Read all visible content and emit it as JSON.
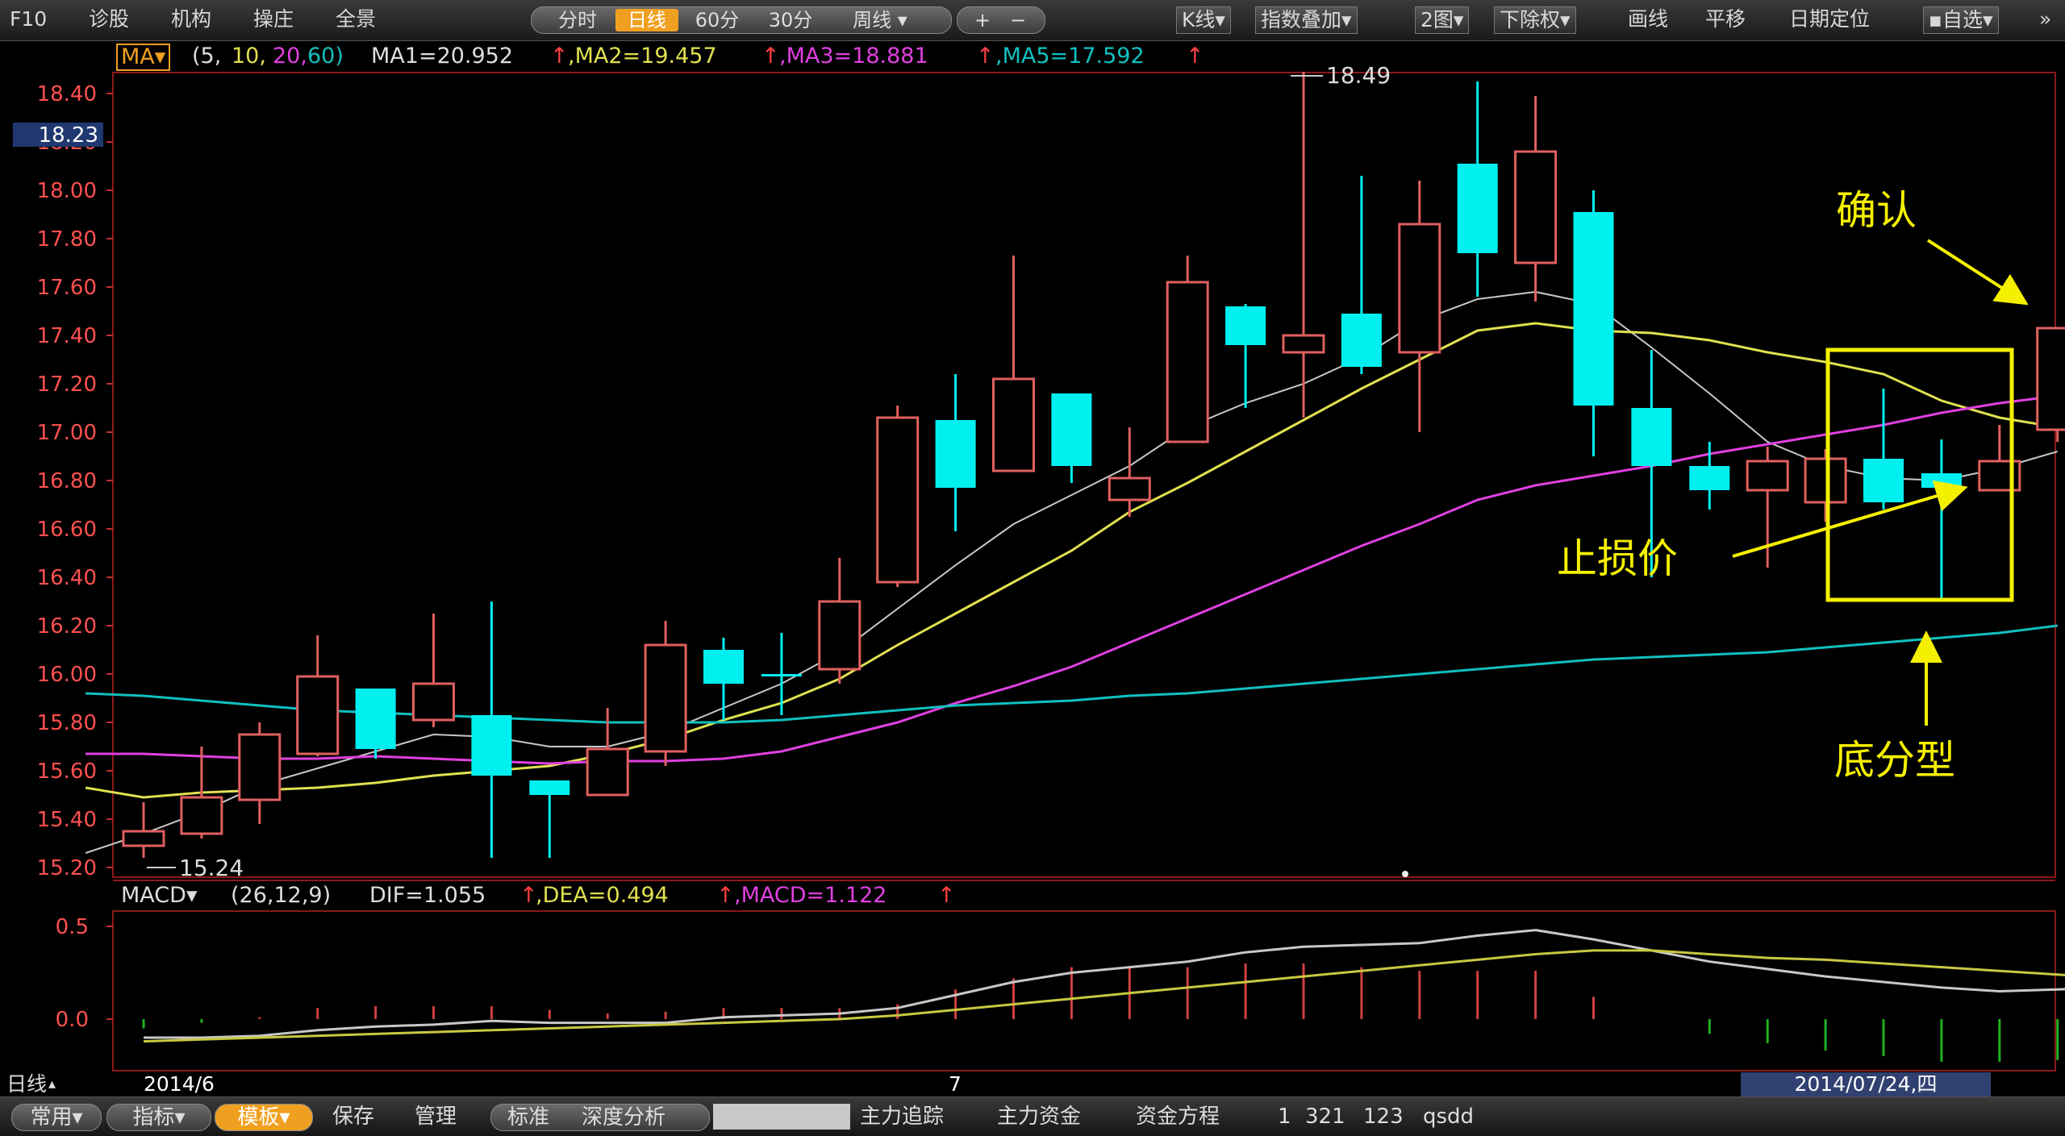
{
  "toolbar": {
    "f10": "F10",
    "items": [
      "诊股",
      "机构",
      "操庄",
      "全景"
    ],
    "periods": [
      "分时",
      "日线",
      "60分",
      "30分",
      "周线"
    ],
    "active_period": "日线",
    "zoom_in": "+",
    "zoom_out": "−",
    "right_items": [
      "K线",
      "指数叠加",
      "2图",
      "下除权",
      "画线",
      "平移",
      "日期定位",
      "自选"
    ],
    "more": "»"
  },
  "ma_indicator": {
    "name": "MA",
    "params_prefix": "(5,",
    "param1": "10,",
    "param2": "20,",
    "param3": "60)",
    "ma1": "MA1=20.952",
    "ma2": ",MA2=19.457",
    "ma3": ",MA3=18.881",
    "ma5": ",MA5=17.592",
    "arrow": "↑"
  },
  "price_axis": {
    "ticks": [
      "18.40",
      "18.20",
      "18.00",
      "17.80",
      "17.60",
      "17.40",
      "17.20",
      "17.00",
      "16.80",
      "16.60",
      "16.40",
      "16.20",
      "16.00",
      "15.80",
      "15.60",
      "15.40",
      "15.20"
    ],
    "current_price": "18.23"
  },
  "chart_data": {
    "type": "candlestick",
    "ylim": [
      15.2,
      18.5
    ],
    "candles": [
      {
        "o": 15.29,
        "c": 15.35,
        "h": 15.47,
        "l": 15.24
      },
      {
        "o": 15.34,
        "c": 15.49,
        "h": 15.7,
        "l": 15.32
      },
      {
        "o": 15.48,
        "c": 15.75,
        "h": 15.8,
        "l": 15.38
      },
      {
        "o": 15.67,
        "c": 15.99,
        "h": 16.16,
        "l": 15.66
      },
      {
        "o": 15.94,
        "c": 15.69,
        "h": 15.94,
        "l": 15.65
      },
      {
        "o": 15.81,
        "c": 15.96,
        "h": 16.25,
        "l": 15.78
      },
      {
        "o": 15.83,
        "c": 15.58,
        "h": 16.3,
        "l": 15.24
      },
      {
        "o": 15.56,
        "c": 15.5,
        "h": 15.56,
        "l": 15.24
      },
      {
        "o": 15.5,
        "c": 15.69,
        "h": 15.86,
        "l": 15.5
      },
      {
        "o": 15.68,
        "c": 16.12,
        "h": 16.22,
        "l": 15.62
      },
      {
        "o": 16.1,
        "c": 15.96,
        "h": 16.15,
        "l": 15.81
      },
      {
        "o": 16.0,
        "c": 16.0,
        "h": 16.17,
        "l": 15.83
      },
      {
        "o": 16.02,
        "c": 16.3,
        "h": 16.48,
        "l": 15.96
      },
      {
        "o": 16.38,
        "c": 17.06,
        "h": 17.11,
        "l": 16.36
      },
      {
        "o": 17.05,
        "c": 16.77,
        "h": 17.24,
        "l": 16.59
      },
      {
        "o": 16.84,
        "c": 17.22,
        "h": 17.73,
        "l": 16.84
      },
      {
        "o": 17.16,
        "c": 16.86,
        "h": 17.16,
        "l": 16.79
      },
      {
        "o": 16.72,
        "c": 16.81,
        "h": 17.02,
        "l": 16.65
      },
      {
        "o": 16.96,
        "c": 17.62,
        "h": 17.73,
        "l": 16.96
      },
      {
        "o": 17.52,
        "c": 17.36,
        "h": 17.53,
        "l": 17.1
      },
      {
        "o": 17.33,
        "c": 17.4,
        "h": 18.49,
        "l": 17.06
      },
      {
        "o": 17.49,
        "c": 17.27,
        "h": 18.06,
        "l": 17.24
      },
      {
        "o": 17.33,
        "c": 17.86,
        "h": 18.04,
        "l": 17.0
      },
      {
        "o": 18.11,
        "c": 17.74,
        "h": 18.45,
        "l": 17.56
      },
      {
        "o": 17.7,
        "c": 18.16,
        "h": 18.39,
        "l": 17.54
      },
      {
        "o": 17.91,
        "c": 17.11,
        "h": 18.0,
        "l": 16.9
      },
      {
        "o": 17.1,
        "c": 16.86,
        "h": 17.34,
        "l": 16.4
      },
      {
        "o": 16.86,
        "c": 16.76,
        "h": 16.96,
        "l": 16.68
      },
      {
        "o": 16.76,
        "c": 16.88,
        "h": 16.94,
        "l": 16.44
      },
      {
        "o": 16.71,
        "c": 16.89,
        "h": 16.93,
        "l": 16.63
      },
      {
        "o": 16.89,
        "c": 16.71,
        "h": 17.18,
        "l": 16.68
      },
      {
        "o": 16.83,
        "c": 16.77,
        "h": 16.97,
        "l": 16.3
      },
      {
        "o": 16.76,
        "c": 16.88,
        "h": 17.03,
        "l": 16.76
      },
      {
        "o": 17.01,
        "c": 17.43,
        "h": 17.43,
        "l": 16.96
      }
    ],
    "ma_lines": [
      {
        "name": "MA1",
        "color": "#c8c8c8",
        "values": [
          15.26,
          15.34,
          15.43,
          15.54,
          15.61,
          15.68,
          15.75,
          15.74,
          15.7,
          15.7,
          15.76,
          15.86,
          15.96,
          16.09,
          16.27,
          16.45,
          16.62,
          16.74,
          16.86,
          17.02,
          17.12,
          17.2,
          17.31,
          17.46,
          17.55,
          17.58,
          17.53,
          17.35,
          17.16,
          16.96,
          16.86,
          16.81,
          16.8,
          16.85,
          16.92
        ]
      },
      {
        "name": "MA2",
        "color": "#e0e050",
        "values": [
          15.53,
          15.49,
          15.51,
          15.52,
          15.53,
          15.55,
          15.58,
          15.6,
          15.62,
          15.67,
          15.73,
          15.81,
          15.88,
          15.98,
          16.12,
          16.25,
          16.38,
          16.51,
          16.67,
          16.79,
          16.92,
          17.05,
          17.18,
          17.3,
          17.42,
          17.45,
          17.42,
          17.41,
          17.38,
          17.33,
          17.29,
          17.24,
          17.13,
          17.06,
          17.02
        ]
      },
      {
        "name": "MA3",
        "color": "#e040e0",
        "values": [
          15.67,
          15.67,
          15.66,
          15.65,
          15.65,
          15.66,
          15.65,
          15.64,
          15.63,
          15.64,
          15.64,
          15.65,
          15.68,
          15.74,
          15.8,
          15.88,
          15.95,
          16.03,
          16.13,
          16.23,
          16.33,
          16.43,
          16.53,
          16.62,
          16.72,
          16.78,
          16.82,
          16.86,
          16.91,
          16.95,
          16.99,
          17.03,
          17.08,
          17.12,
          17.15
        ]
      },
      {
        "name": "MA5",
        "color": "#10c0c0",
        "values": [
          15.92,
          15.91,
          15.89,
          15.87,
          15.85,
          15.84,
          15.83,
          15.82,
          15.81,
          15.8,
          15.8,
          15.8,
          15.81,
          15.83,
          15.85,
          15.87,
          15.88,
          15.89,
          15.91,
          15.92,
          15.94,
          15.96,
          15.98,
          16.0,
          16.02,
          16.04,
          16.06,
          16.07,
          16.08,
          16.09,
          16.11,
          16.13,
          16.15,
          16.17,
          16.2
        ]
      }
    ],
    "macd": {
      "ylim": [
        -0.2,
        0.6
      ],
      "ticks": [
        "0.5",
        "0.0"
      ],
      "dif": [
        -0.1,
        -0.1,
        -0.09,
        -0.06,
        -0.04,
        -0.03,
        -0.01,
        -0.02,
        -0.02,
        -0.02,
        0.01,
        0.02,
        0.03,
        0.06,
        0.13,
        0.2,
        0.25,
        0.28,
        0.31,
        0.36,
        0.39,
        0.4,
        0.41,
        0.45,
        0.48,
        0.43,
        0.37,
        0.31,
        0.27,
        0.23,
        0.2,
        0.17,
        0.15,
        0.16,
        0.17
      ],
      "dea": [
        -0.12,
        -0.11,
        -0.1,
        -0.09,
        -0.08,
        -0.07,
        -0.06,
        -0.05,
        -0.04,
        -0.03,
        -0.02,
        -0.01,
        0.0,
        0.02,
        0.05,
        0.08,
        0.11,
        0.14,
        0.17,
        0.2,
        0.23,
        0.26,
        0.29,
        0.32,
        0.35,
        0.37,
        0.37,
        0.35,
        0.33,
        0.32,
        0.3,
        0.28,
        0.26,
        0.24,
        0.22
      ],
      "hist": [
        -0.05,
        -0.02,
        0.01,
        0.06,
        0.07,
        0.07,
        0.07,
        0.05,
        0.03,
        0.04,
        0.06,
        0.06,
        0.06,
        0.08,
        0.16,
        0.22,
        0.28,
        0.28,
        0.28,
        0.3,
        0.3,
        0.28,
        0.26,
        0.26,
        0.26,
        0.12,
        0.0,
        -0.08,
        -0.13,
        -0.17,
        -0.2,
        -0.23,
        -0.23,
        -0.22,
        -0.2
      ]
    }
  },
  "annotations": {
    "high_label": "18.49",
    "low_label": "15.24",
    "confirm": "确认",
    "stop_loss": "止损价",
    "bottom_pattern": "底分型"
  },
  "macd_indicator": {
    "name": "MACD",
    "params": "(26,12,9)",
    "dif": "DIF=1.055",
    "dea": ",DEA=0.494",
    "macd": ",MACD=1.122",
    "arrow": "↑"
  },
  "date_axis": {
    "period": "日线",
    "start": "2014/6",
    "mid": "7",
    "cursor_date": "2014/07/24,四"
  },
  "bottom_bar": {
    "items": [
      "常用",
      "指标",
      "模板",
      "保存",
      "管理",
      "标准",
      "深度分析",
      "",
      "主力追踪",
      "主力资金",
      "资金方程",
      "1",
      "321",
      "123",
      "qsdd"
    ]
  },
  "colors": {
    "up": "#e06060",
    "down": "#00f0f0",
    "accent": "#f0a020",
    "annotation": "#f5f000"
  }
}
